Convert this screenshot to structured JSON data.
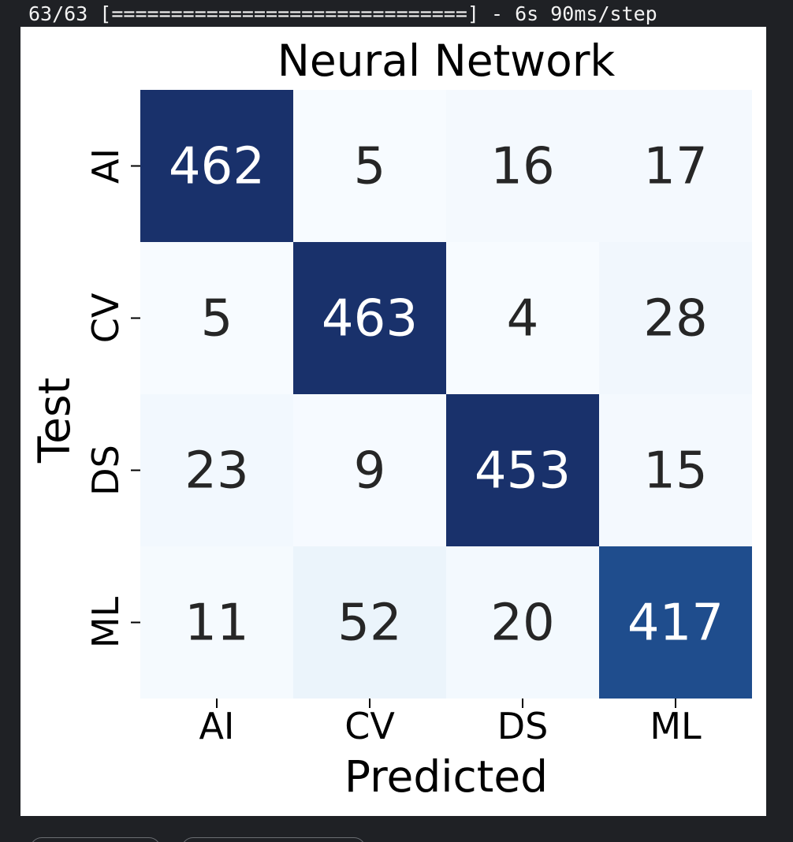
{
  "console": {
    "progress_text": "63/63 [==============================] - 6s 90ms/step"
  },
  "chart_data": {
    "type": "heatmap",
    "title": "Neural Network",
    "xlabel": "Predicted",
    "ylabel": "Test",
    "x_categories": [
      "AI",
      "CV",
      "DS",
      "ML"
    ],
    "y_categories": [
      "AI",
      "CV",
      "DS",
      "ML"
    ],
    "values": [
      [
        462,
        5,
        16,
        17
      ],
      [
        5,
        463,
        4,
        28
      ],
      [
        23,
        9,
        453,
        15
      ],
      [
        11,
        52,
        20,
        417
      ]
    ],
    "colormap": "Blues",
    "colorbar": false,
    "grid": false,
    "colors": {
      "low": "#f7fbff",
      "high": "#08306b",
      "dark_text": "#262626",
      "light_text": "#ffffff"
    }
  }
}
